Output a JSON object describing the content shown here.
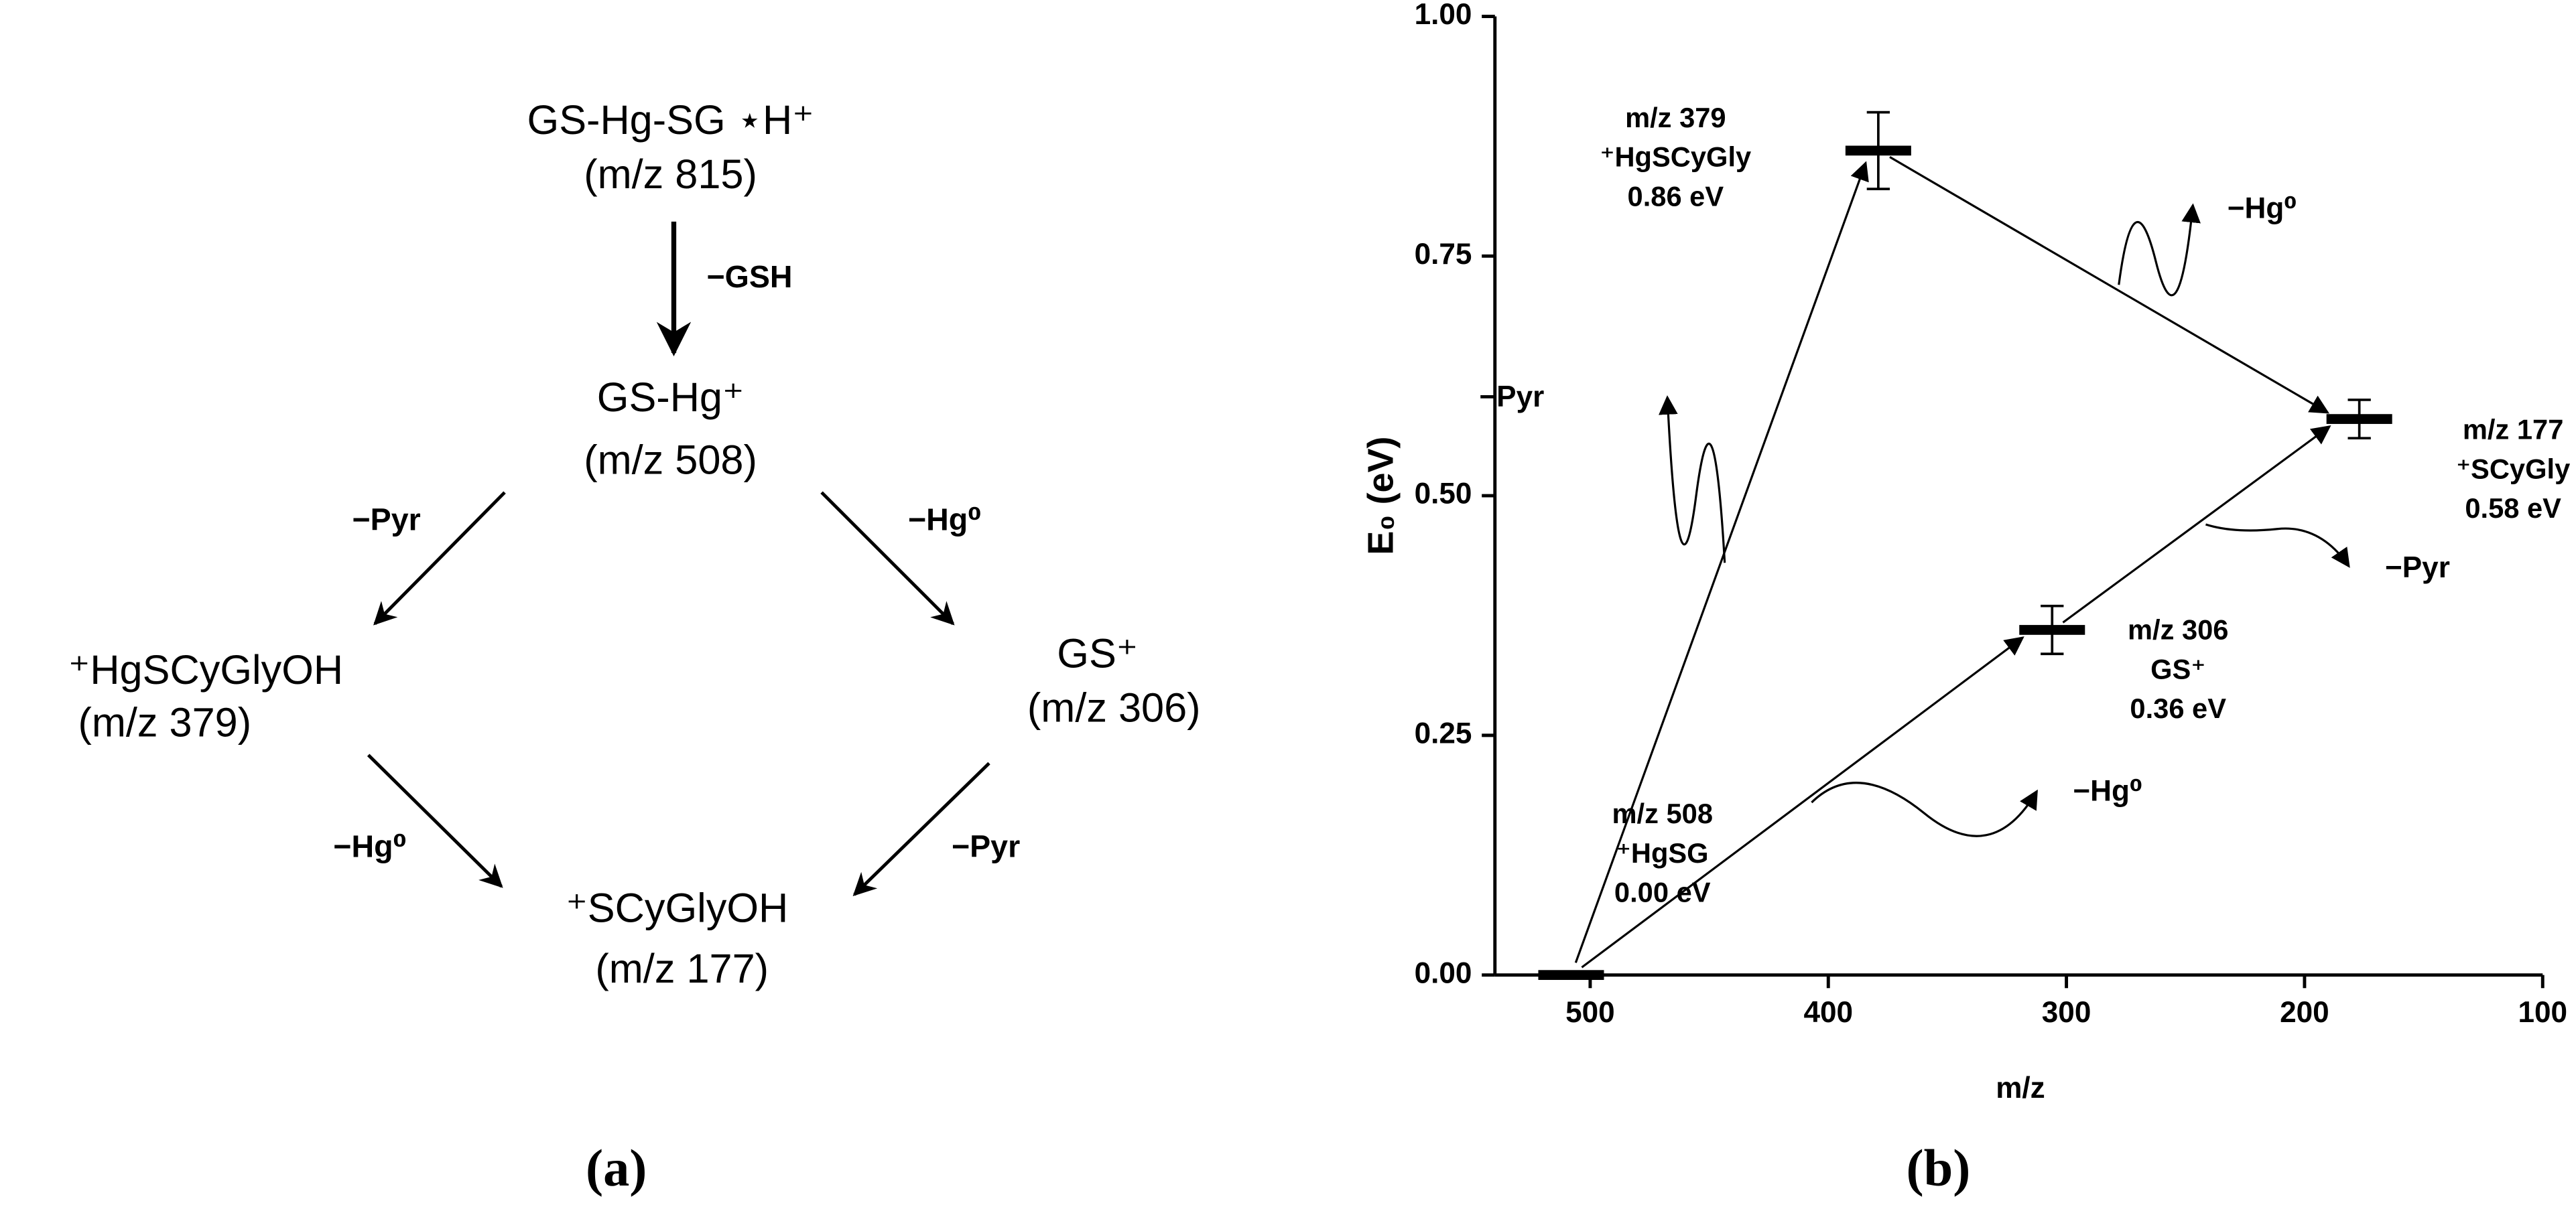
{
  "diagram": {
    "nodes": [
      {
        "label": "GS-Hg-SG ⋆H⁺",
        "mz": "(m/z 815)"
      },
      {
        "label": "GS-Hg⁺",
        "mz": "(m/z 508)"
      },
      {
        "label": "⁺HgSCyGlyOH",
        "mz": "(m/z 379)"
      },
      {
        "label": "GS⁺",
        "mz": "(m/z 306)"
      },
      {
        "label": "⁺SCyGlyOH",
        "mz": "(m/z 177)"
      }
    ],
    "edges": [
      "−GSH",
      "−Pyr",
      "−Hg⁰",
      "−Hg⁰",
      "−Pyr"
    ],
    "caption": "(a)"
  },
  "chart_data": {
    "type": "scatter",
    "caption": "(b)",
    "xlabel": "m/z",
    "ylabel": "E₀ (eV)",
    "xlim": [
      540,
      100
    ],
    "ylim": [
      0,
      1
    ],
    "xticks": [
      500,
      400,
      300,
      200,
      100
    ],
    "yticks": [
      {
        "value": 0,
        "label": "0.00"
      },
      0.25,
      {
        "value": 0.5,
        "label": "0.50"
      },
      0.75,
      {
        "value": 1,
        "label": "1.00"
      }
    ],
    "x": [
      508,
      379,
      306,
      177
    ],
    "series": [
      {
        "color": "#000000",
        "values": [
          0,
          0.86,
          0.36,
          0.58
        ],
        "value_labels": [
          "0.00 eV",
          "0.86 eV",
          "0.36 eV",
          "0.58 eV"
        ],
        "errors": [
          null,
          0.04,
          0.025,
          0.02
        ]
      }
    ],
    "mz_labels": [
      "m/z 508",
      "m/z 379",
      "m/z 306",
      "m/z 177"
    ],
    "ion_labels": [
      "⁺HgSG",
      "⁺HgSCyGly",
      "GS⁺",
      "⁺SCyGly"
    ],
    "annotations": [
      "−Pyr",
      "−Hg⁰",
      "−Hg⁰",
      "−Pyr"
    ]
  }
}
